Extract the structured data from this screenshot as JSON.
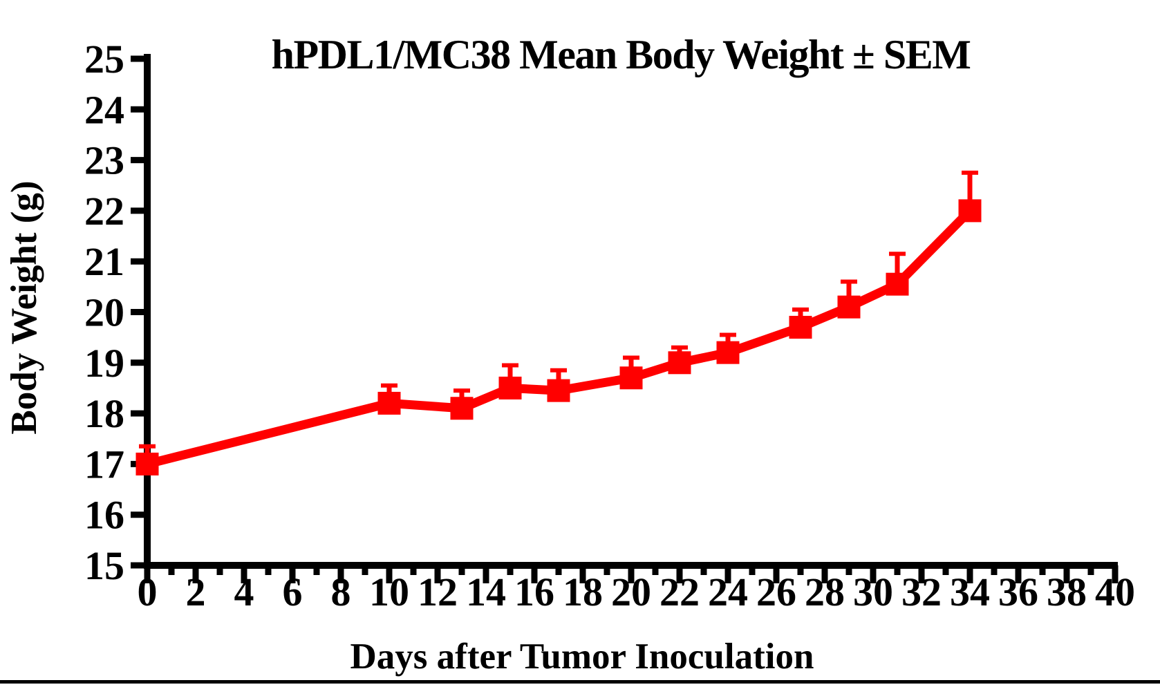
{
  "page": {
    "background_color": "#FFFFFF",
    "footer_rule_color": "#000000"
  },
  "chart_data": {
    "type": "line",
    "title": "hPDL1/MC38 Mean Body Weight ± SEM",
    "xlabel": "Days after Tumor Inoculation",
    "ylabel": "Body Weight (g)",
    "xlim": [
      0,
      40
    ],
    "ylim": [
      15,
      25
    ],
    "x_major_tick_step": 2,
    "x_minor_tick_step": 1,
    "y_tick_step": 1,
    "grid": false,
    "legend_position": "none",
    "error_bars": "upper_sem_only",
    "axis_color": "#000000",
    "series": [
      {
        "name": "hPDL1/MC38",
        "color": "#FF0000",
        "marker": "square",
        "x": [
          0,
          10,
          13,
          15,
          17,
          20,
          22,
          24,
          27,
          29,
          31,
          34
        ],
        "y": [
          17.0,
          18.2,
          18.1,
          18.5,
          18.45,
          18.7,
          19.0,
          19.2,
          19.7,
          20.1,
          20.55,
          22.0
        ],
        "sem": [
          0.35,
          0.35,
          0.35,
          0.45,
          0.4,
          0.4,
          0.3,
          0.35,
          0.35,
          0.5,
          0.6,
          0.75
        ]
      }
    ]
  }
}
